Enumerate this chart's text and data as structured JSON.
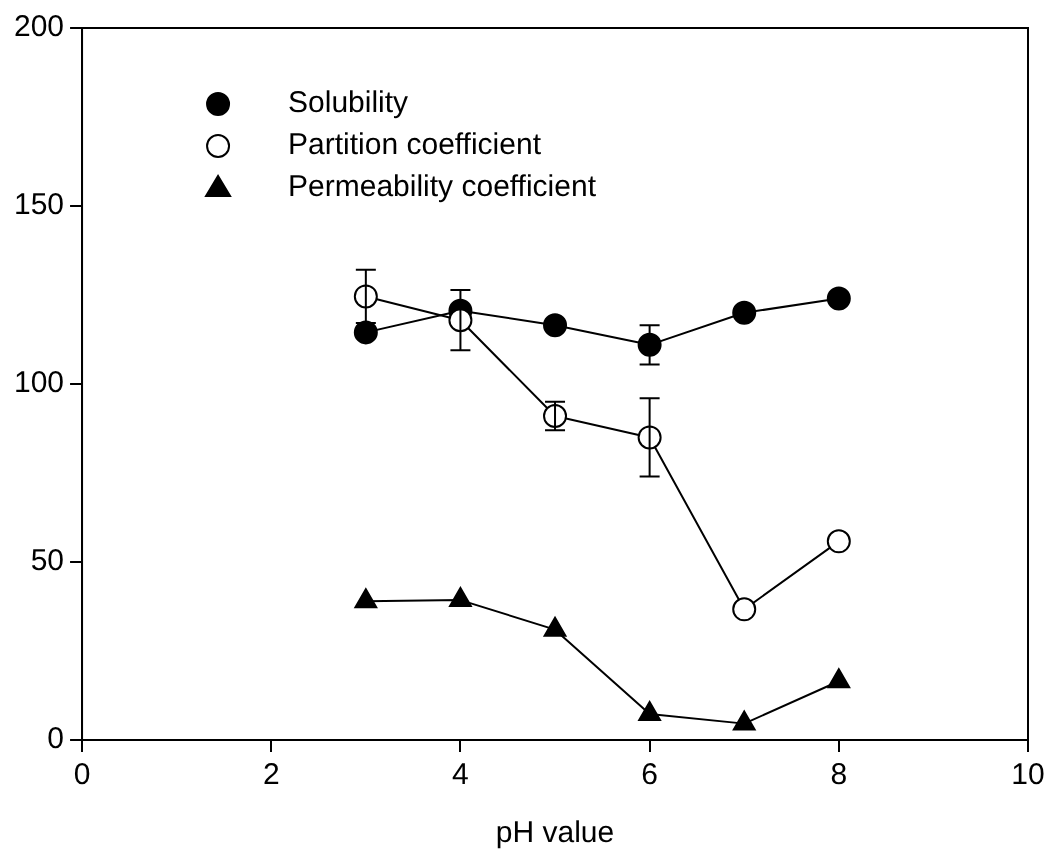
{
  "chart_data": {
    "type": "line",
    "xlabel": "pH value",
    "x": [
      3,
      4,
      5,
      6,
      7,
      8
    ],
    "series": [
      {
        "name": "Solubility",
        "color": "#000000",
        "marker": "circle",
        "values": [
          114.5,
          120.6,
          116.5,
          111,
          120,
          124
        ],
        "errors": [
          null,
          null,
          null,
          5.5,
          null,
          null
        ]
      },
      {
        "name": "Partition coefficient",
        "color": "#ffffff",
        "marker": "circle",
        "values": [
          124.6,
          117.9,
          91,
          85,
          36.7,
          55.8
        ],
        "errors": [
          7.5,
          [
            109.5,
            126.4
          ],
          4,
          11,
          null,
          null
        ]
      },
      {
        "name": "Permeability coefficient",
        "color": "#000000",
        "marker": "triangle",
        "values": [
          39,
          39.3,
          31,
          7.3,
          4.6,
          16.5
        ]
      }
    ],
    "xlim": [
      0,
      10
    ],
    "xticks": [
      0,
      2,
      4,
      6,
      8,
      10
    ],
    "ylim": [
      0,
      200
    ],
    "yticks": [
      0,
      50,
      100,
      150,
      200
    ],
    "grid": false,
    "legend": "top left",
    "line_style": "solid"
  }
}
